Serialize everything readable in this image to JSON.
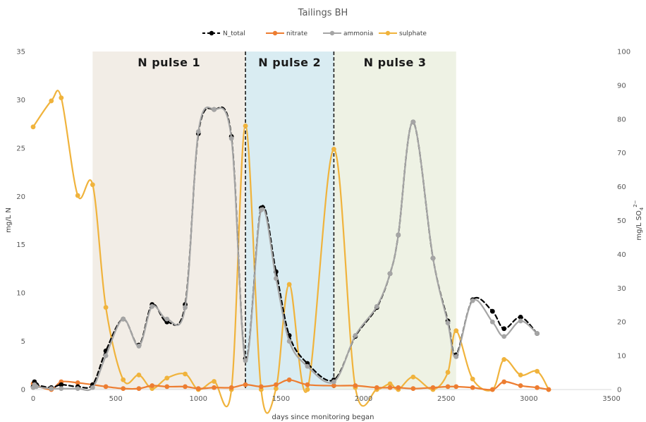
{
  "chart_data": {
    "type": "line",
    "title": "Tailings BH",
    "xlabel": "days since monitoring began",
    "ylabel_left": "mg/L N",
    "ylabel_right": "mg/L SO",
    "ylabel_right_sub": "4",
    "ylabel_right_sup": "2−",
    "xlim": [
      0,
      3500
    ],
    "ylim_left": [
      0,
      35
    ],
    "ylim_right": [
      0,
      100
    ],
    "xticks": [
      0,
      500,
      1000,
      1500,
      2000,
      2500,
      3000,
      3500
    ],
    "yticks_left": [
      0,
      5,
      10,
      15,
      20,
      25,
      30,
      35
    ],
    "yticks_right": [
      0,
      10,
      20,
      30,
      40,
      50,
      60,
      70,
      80,
      90,
      100
    ],
    "grid": false,
    "legend_position": "top",
    "regions": [
      {
        "label": "N pulse 1",
        "x_start": 360,
        "x_end": 1285,
        "color": "#f2ede6"
      },
      {
        "label": "N pulse 2",
        "x_start": 1285,
        "x_end": 1820,
        "color": "#d9ecf2"
      },
      {
        "label": "N pulse 3",
        "x_start": 1820,
        "x_end": 2560,
        "color": "#eef2e4"
      }
    ],
    "vlines": [
      1285,
      1820
    ],
    "series": [
      {
        "name": "N_total",
        "axis": "left",
        "color": "#000000",
        "dashed": true,
        "x": [
          0,
          8,
          20,
          110,
          170,
          270,
          360,
          440,
          545,
          640,
          720,
          810,
          920,
          1000,
          1095,
          1200,
          1285,
          1380,
          1470,
          1550,
          1660,
          1820,
          1950,
          2080,
          2160,
          2210,
          2300,
          2420,
          2510,
          2560,
          2660,
          2780,
          2850,
          2950,
          3050
        ],
        "y": [
          0.3,
          0.8,
          0.5,
          0.2,
          0.5,
          0.3,
          0.5,
          4.0,
          7.3,
          4.6,
          8.8,
          7.0,
          8.8,
          26.5,
          29.0,
          26.2,
          3.2,
          18.8,
          12.2,
          5.6,
          2.7,
          1.0,
          5.5,
          8.5,
          12.0,
          16.0,
          27.7,
          13.6,
          7.1,
          3.6,
          9.3,
          8.1,
          6.3,
          7.5,
          5.8
        ]
      },
      {
        "name": "nitrate",
        "axis": "left",
        "color": "#ed7d31",
        "x": [
          0,
          8,
          20,
          110,
          170,
          270,
          360,
          440,
          545,
          640,
          720,
          810,
          920,
          1000,
          1095,
          1200,
          1285,
          1380,
          1470,
          1550,
          1660,
          1820,
          1950,
          2080,
          2160,
          2210,
          2300,
          2420,
          2510,
          2560,
          2660,
          2780,
          2850,
          2950,
          3050,
          3120
        ],
        "y": [
          0.6,
          0.5,
          0.4,
          0.0,
          0.8,
          0.7,
          0.5,
          0.3,
          0.1,
          0.1,
          0.4,
          0.3,
          0.3,
          0.1,
          0.2,
          0.2,
          0.5,
          0.3,
          0.5,
          1.0,
          0.5,
          0.4,
          0.4,
          0.2,
          0.2,
          0.2,
          0.1,
          0.2,
          0.3,
          0.3,
          0.2,
          0.0,
          0.8,
          0.4,
          0.2,
          0.0
        ]
      },
      {
        "name": "ammonia",
        "axis": "left",
        "color": "#a5a5a5",
        "x": [
          0,
          8,
          20,
          110,
          170,
          270,
          360,
          440,
          545,
          640,
          720,
          810,
          920,
          1000,
          1095,
          1200,
          1285,
          1380,
          1470,
          1550,
          1660,
          1820,
          1950,
          2080,
          2160,
          2210,
          2300,
          2420,
          2510,
          2560,
          2660,
          2780,
          2850,
          2950,
          3050
        ],
        "y": [
          0.2,
          0.5,
          0.3,
          0.1,
          0.1,
          0.1,
          0.2,
          3.5,
          7.3,
          4.5,
          8.6,
          7.3,
          8.5,
          26.7,
          29.0,
          26.0,
          3.0,
          18.6,
          11.5,
          5.0,
          2.4,
          0.8,
          5.6,
          8.6,
          12.0,
          16.0,
          27.7,
          13.6,
          6.9,
          3.4,
          9.2,
          7.0,
          5.5,
          7.1,
          5.8
        ]
      },
      {
        "name": "sulphate",
        "axis": "right",
        "color": "#f0b33c",
        "x": [
          0,
          110,
          170,
          270,
          360,
          440,
          545,
          640,
          720,
          810,
          920,
          1000,
          1095,
          1200,
          1285,
          1380,
          1470,
          1550,
          1660,
          1820,
          1950,
          2080,
          2160,
          2210,
          2300,
          2420,
          2510,
          2560,
          2660,
          2780,
          2850,
          2950,
          3050,
          3120
        ],
        "y": [
          77.7,
          85.4,
          86.3,
          57.4,
          60.6,
          24.3,
          2.9,
          4.3,
          0.3,
          3.4,
          4.6,
          0.0,
          2.4,
          0.0,
          78.0,
          0.0,
          0.3,
          31.1,
          0.0,
          71.1,
          0.6,
          0.0,
          1.7,
          0.0,
          3.7,
          0.0,
          5.1,
          17.4,
          3.1,
          0.0,
          8.9,
          4.3,
          5.4,
          0.0
        ]
      }
    ]
  }
}
